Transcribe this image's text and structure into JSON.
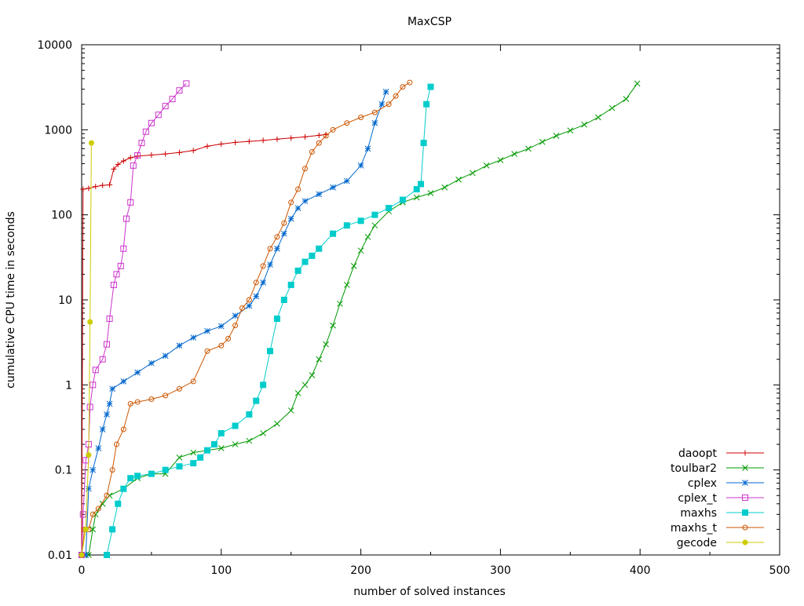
{
  "chart_data": {
    "type": "line",
    "title": "MaxCSP",
    "xlabel": "number of solved instances",
    "ylabel": "cumulative CPU time in seconds",
    "xlim": [
      0,
      500
    ],
    "ylim": [
      0.01,
      10000
    ],
    "yscale": "log",
    "grid": false,
    "legend_position": "bottom-right",
    "x_ticks": [
      0,
      100,
      200,
      300,
      400,
      500
    ],
    "x_tick_labels": [
      "0",
      "100",
      "200",
      "300",
      "400",
      "500"
    ],
    "y_ticks": [
      0.01,
      0.1,
      1,
      10,
      100,
      1000,
      10000
    ],
    "y_tick_labels": [
      "0.01",
      "0.1",
      "1",
      "10",
      "100",
      "1000",
      "10000"
    ],
    "series": [
      {
        "name": "daoopt",
        "color": "#cc0000",
        "marker": "plus",
        "points": [
          [
            0,
            0.01
          ],
          [
            1,
            200
          ],
          [
            5,
            205
          ],
          [
            10,
            215
          ],
          [
            15,
            222
          ],
          [
            20,
            225
          ],
          [
            23,
            345
          ],
          [
            26,
            390
          ],
          [
            30,
            430
          ],
          [
            35,
            470
          ],
          [
            40,
            490
          ],
          [
            50,
            505
          ],
          [
            60,
            520
          ],
          [
            70,
            540
          ],
          [
            80,
            570
          ],
          [
            90,
            640
          ],
          [
            100,
            680
          ],
          [
            110,
            710
          ],
          [
            120,
            730
          ],
          [
            130,
            750
          ],
          [
            140,
            775
          ],
          [
            150,
            800
          ],
          [
            160,
            825
          ],
          [
            170,
            860
          ],
          [
            175,
            880
          ]
        ]
      },
      {
        "name": "toulbar2",
        "color": "#009900",
        "marker": "x",
        "points": [
          [
            2,
            0.01
          ],
          [
            5,
            0.01
          ],
          [
            8,
            0.02
          ],
          [
            10,
            0.03
          ],
          [
            15,
            0.04
          ],
          [
            20,
            0.05
          ],
          [
            30,
            0.06
          ],
          [
            40,
            0.08
          ],
          [
            50,
            0.09
          ],
          [
            60,
            0.09
          ],
          [
            70,
            0.14
          ],
          [
            80,
            0.16
          ],
          [
            90,
            0.17
          ],
          [
            100,
            0.18
          ],
          [
            110,
            0.2
          ],
          [
            120,
            0.22
          ],
          [
            130,
            0.27
          ],
          [
            140,
            0.35
          ],
          [
            150,
            0.5
          ],
          [
            155,
            0.8
          ],
          [
            160,
            1.0
          ],
          [
            165,
            1.3
          ],
          [
            170,
            2.0
          ],
          [
            175,
            3.0
          ],
          [
            180,
            5.0
          ],
          [
            185,
            9.0
          ],
          [
            190,
            15
          ],
          [
            195,
            25
          ],
          [
            200,
            38
          ],
          [
            205,
            55
          ],
          [
            210,
            75
          ],
          [
            220,
            110
          ],
          [
            230,
            140
          ],
          [
            240,
            160
          ],
          [
            250,
            180
          ],
          [
            260,
            210
          ],
          [
            270,
            260
          ],
          [
            280,
            310
          ],
          [
            290,
            380
          ],
          [
            300,
            440
          ],
          [
            310,
            520
          ],
          [
            320,
            600
          ],
          [
            330,
            720
          ],
          [
            340,
            850
          ],
          [
            350,
            980
          ],
          [
            360,
            1150
          ],
          [
            370,
            1400
          ],
          [
            380,
            1800
          ],
          [
            390,
            2300
          ],
          [
            398,
            3500
          ]
        ]
      },
      {
        "name": "cplex",
        "color": "#0066cc",
        "marker": "star",
        "points": [
          [
            0,
            0.01
          ],
          [
            3,
            0.01
          ],
          [
            5,
            0.06
          ],
          [
            8,
            0.1
          ],
          [
            12,
            0.18
          ],
          [
            15,
            0.3
          ],
          [
            18,
            0.45
          ],
          [
            20,
            0.6
          ],
          [
            22,
            0.9
          ],
          [
            30,
            1.1
          ],
          [
            40,
            1.4
          ],
          [
            50,
            1.8
          ],
          [
            60,
            2.2
          ],
          [
            70,
            2.9
          ],
          [
            80,
            3.6
          ],
          [
            90,
            4.3
          ],
          [
            100,
            4.9
          ],
          [
            110,
            6.5
          ],
          [
            120,
            8.5
          ],
          [
            125,
            11
          ],
          [
            130,
            16
          ],
          [
            135,
            26
          ],
          [
            140,
            40
          ],
          [
            145,
            60
          ],
          [
            150,
            90
          ],
          [
            155,
            120
          ],
          [
            160,
            145
          ],
          [
            170,
            175
          ],
          [
            180,
            210
          ],
          [
            190,
            250
          ],
          [
            200,
            380
          ],
          [
            205,
            600
          ],
          [
            210,
            1200
          ],
          [
            215,
            2000
          ],
          [
            218,
            2800
          ]
        ]
      },
      {
        "name": "cplex_t",
        "color": "#cc33cc",
        "marker": "square",
        "points": [
          [
            0,
            0.01
          ],
          [
            1,
            0.03
          ],
          [
            3,
            0.13
          ],
          [
            5,
            0.2
          ],
          [
            6,
            0.55
          ],
          [
            8,
            1.0
          ],
          [
            10,
            1.5
          ],
          [
            15,
            2.0
          ],
          [
            18,
            3.0
          ],
          [
            20,
            6.0
          ],
          [
            23,
            15
          ],
          [
            25,
            20
          ],
          [
            28,
            25
          ],
          [
            30,
            40
          ],
          [
            32,
            90
          ],
          [
            35,
            140
          ],
          [
            37,
            380
          ],
          [
            40,
            500
          ],
          [
            43,
            700
          ],
          [
            46,
            950
          ],
          [
            50,
            1200
          ],
          [
            55,
            1500
          ],
          [
            60,
            1900
          ],
          [
            65,
            2300
          ],
          [
            70,
            2900
          ],
          [
            75,
            3500
          ]
        ]
      },
      {
        "name": "maxhs",
        "color": "#00cccc",
        "marker": "filled-square",
        "points": [
          [
            18,
            0.01
          ],
          [
            22,
            0.02
          ],
          [
            26,
            0.04
          ],
          [
            30,
            0.06
          ],
          [
            35,
            0.08
          ],
          [
            40,
            0.085
          ],
          [
            50,
            0.09
          ],
          [
            60,
            0.1
          ],
          [
            70,
            0.11
          ],
          [
            80,
            0.12
          ],
          [
            85,
            0.14
          ],
          [
            90,
            0.17
          ],
          [
            95,
            0.2
          ],
          [
            100,
            0.27
          ],
          [
            110,
            0.33
          ],
          [
            120,
            0.45
          ],
          [
            125,
            0.65
          ],
          [
            130,
            1.0
          ],
          [
            135,
            2.5
          ],
          [
            140,
            6.0
          ],
          [
            145,
            10
          ],
          [
            150,
            15
          ],
          [
            155,
            22
          ],
          [
            160,
            28
          ],
          [
            165,
            33
          ],
          [
            170,
            40
          ],
          [
            180,
            60
          ],
          [
            190,
            75
          ],
          [
            200,
            85
          ],
          [
            210,
            100
          ],
          [
            220,
            120
          ],
          [
            230,
            150
          ],
          [
            240,
            200
          ],
          [
            243,
            230
          ],
          [
            245,
            700
          ],
          [
            247,
            2000
          ],
          [
            250,
            3200
          ]
        ]
      },
      {
        "name": "maxhs_t",
        "color": "#cc5500",
        "marker": "circle",
        "points": [
          [
            0,
            0.01
          ],
          [
            2,
            0.02
          ],
          [
            5,
            0.02
          ],
          [
            8,
            0.03
          ],
          [
            12,
            0.035
          ],
          [
            18,
            0.05
          ],
          [
            22,
            0.1
          ],
          [
            25,
            0.2
          ],
          [
            30,
            0.3
          ],
          [
            35,
            0.6
          ],
          [
            40,
            0.63
          ],
          [
            50,
            0.68
          ],
          [
            60,
            0.75
          ],
          [
            70,
            0.9
          ],
          [
            80,
            1.1
          ],
          [
            90,
            2.5
          ],
          [
            100,
            2.9
          ],
          [
            105,
            3.5
          ],
          [
            110,
            5.0
          ],
          [
            115,
            8.0
          ],
          [
            120,
            10
          ],
          [
            125,
            16
          ],
          [
            130,
            25
          ],
          [
            135,
            40
          ],
          [
            140,
            55
          ],
          [
            145,
            80
          ],
          [
            150,
            140
          ],
          [
            155,
            200
          ],
          [
            160,
            350
          ],
          [
            165,
            550
          ],
          [
            170,
            700
          ],
          [
            175,
            850
          ],
          [
            180,
            1000
          ],
          [
            190,
            1200
          ],
          [
            200,
            1400
          ],
          [
            210,
            1600
          ],
          [
            220,
            2000
          ],
          [
            225,
            2500
          ],
          [
            230,
            3200
          ],
          [
            235,
            3600
          ]
        ]
      },
      {
        "name": "gecode",
        "color": "#cccc00",
        "marker": "filled-circle",
        "points": [
          [
            0,
            0.01
          ],
          [
            3,
            0.02
          ],
          [
            5,
            0.15
          ],
          [
            6,
            5.5
          ],
          [
            7,
            700
          ]
        ]
      }
    ]
  }
}
